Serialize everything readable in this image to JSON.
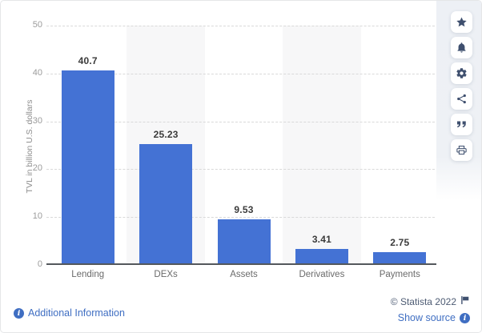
{
  "chart_data": {
    "type": "bar",
    "categories": [
      "Lending",
      "DEXs",
      "Assets",
      "Derivatives",
      "Payments"
    ],
    "values": [
      40.7,
      25.23,
      9.53,
      3.41,
      2.75
    ],
    "value_labels": [
      "40.7",
      "25.23",
      "9.53",
      "3.41",
      "2.75"
    ],
    "title": "",
    "xlabel": "",
    "ylabel": "TVL in billion U.S. dollars",
    "ylim": [
      0,
      50
    ],
    "yticks": [
      0,
      10,
      20,
      30,
      40,
      50
    ],
    "grid": true,
    "legend": "none",
    "band_columns": [
      1,
      3
    ],
    "bar_color": "#4472d4",
    "band_color": "#f7f7f8"
  },
  "toolbar": {
    "buttons": [
      {
        "name": "favorite",
        "icon": "star-icon"
      },
      {
        "name": "notifications",
        "icon": "bell-icon"
      },
      {
        "name": "settings",
        "icon": "gear-icon"
      },
      {
        "name": "share",
        "icon": "share-icon"
      },
      {
        "name": "cite",
        "icon": "quote-icon"
      },
      {
        "name": "print",
        "icon": "print-icon"
      }
    ]
  },
  "footer": {
    "additional_info_label": "Additional Information",
    "copyright": "© Statista 2022",
    "show_source_label": "Show source"
  },
  "colors": {
    "bar_blue": "#4472d4",
    "link_blue": "#3f6ec2",
    "brand_navy": "#3e4f6e",
    "copyright_navy": "#4d5b73",
    "gridline": "#d9d9d9",
    "baseline": "#54585c"
  }
}
